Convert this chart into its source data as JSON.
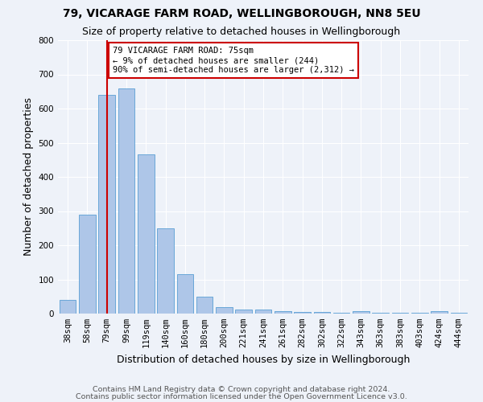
{
  "title": "79, VICARAGE FARM ROAD, WELLINGBOROUGH, NN8 5EU",
  "subtitle": "Size of property relative to detached houses in Wellingborough",
  "xlabel": "Distribution of detached houses by size in Wellingborough",
  "ylabel": "Number of detached properties",
  "footnote1": "Contains HM Land Registry data © Crown copyright and database right 2024.",
  "footnote2": "Contains public sector information licensed under the Open Government Licence v3.0.",
  "categories": [
    "38sqm",
    "58sqm",
    "79sqm",
    "99sqm",
    "119sqm",
    "140sqm",
    "160sqm",
    "180sqm",
    "200sqm",
    "221sqm",
    "241sqm",
    "261sqm",
    "282sqm",
    "302sqm",
    "322sqm",
    "343sqm",
    "363sqm",
    "383sqm",
    "403sqm",
    "424sqm",
    "444sqm"
  ],
  "values": [
    40,
    290,
    640,
    660,
    465,
    250,
    115,
    50,
    18,
    12,
    12,
    8,
    5,
    5,
    3,
    6,
    3,
    3,
    3,
    8,
    3
  ],
  "bar_color": "#aec6e8",
  "bar_edge_color": "#5a9fd4",
  "vline_x": 2,
  "vline_color": "#cc0000",
  "annotation_text": "79 VICARAGE FARM ROAD: 75sqm\n← 9% of detached houses are smaller (244)\n90% of semi-detached houses are larger (2,312) →",
  "annotation_box_color": "#ffffff",
  "annotation_box_edge": "#cc0000",
  "ylim": [
    0,
    800
  ],
  "yticks": [
    0,
    100,
    200,
    300,
    400,
    500,
    600,
    700,
    800
  ],
  "background_color": "#eef2f9",
  "grid_color": "#ffffff",
  "title_fontsize": 10,
  "subtitle_fontsize": 9,
  "axis_label_fontsize": 9,
  "tick_fontsize": 7.5,
  "footnote_fontsize": 6.8,
  "annotation_fontsize": 7.5
}
